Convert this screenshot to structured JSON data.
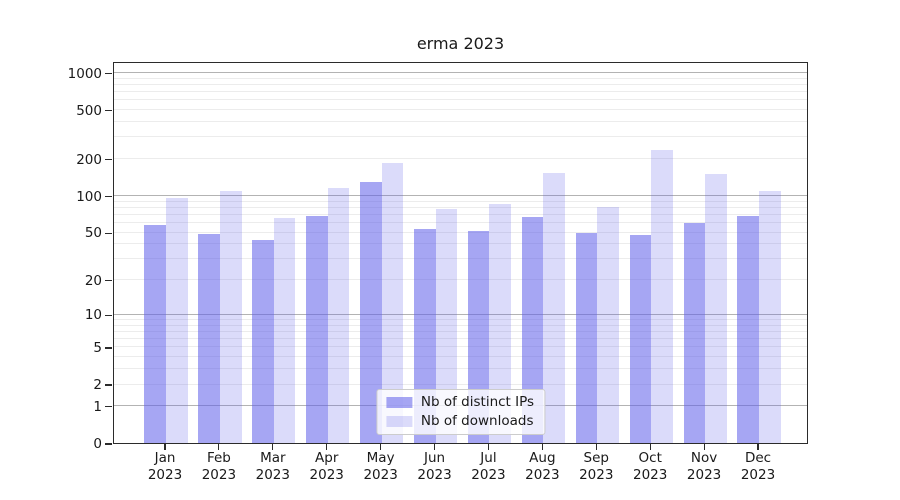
{
  "chart_data": {
    "type": "bar",
    "title": "erma 2023",
    "categories": [
      "Jan 2023",
      "Feb 2023",
      "Mar 2023",
      "Apr 2023",
      "May 2023",
      "Jun 2023",
      "Jul 2023",
      "Aug 2023",
      "Sep 2023",
      "Oct 2023",
      "Nov 2023",
      "Dec 2023"
    ],
    "series": [
      {
        "name": "Nb of distinct IPs",
        "values": [
          57,
          48,
          43,
          68,
          128,
          53,
          51,
          67,
          49,
          47,
          59,
          68
        ],
        "color": "rgba(92,92,234,0.55)"
      },
      {
        "name": "Nb of downloads",
        "values": [
          96,
          109,
          66,
          116,
          183,
          77,
          85,
          152,
          80,
          233,
          149,
          109
        ],
        "color": "rgba(92,92,234,0.22)"
      }
    ],
    "xlabel": "",
    "ylabel": "",
    "yscale": "log1p",
    "ylim": [
      0,
      1240
    ],
    "yticks": [
      0,
      1,
      2,
      5,
      10,
      20,
      50,
      100,
      200,
      500,
      1000
    ],
    "major_gridlines": [
      1,
      10,
      100,
      1000
    ],
    "grid": true,
    "legend_position": "lower center",
    "colors": {
      "grid_major": "#b3b3b3",
      "grid_minor": "#ececec",
      "spine": "#2b2b2b",
      "text": "#1a1a1a",
      "legend_border": "#cccccc",
      "bars_base": "#5c5cea"
    }
  }
}
